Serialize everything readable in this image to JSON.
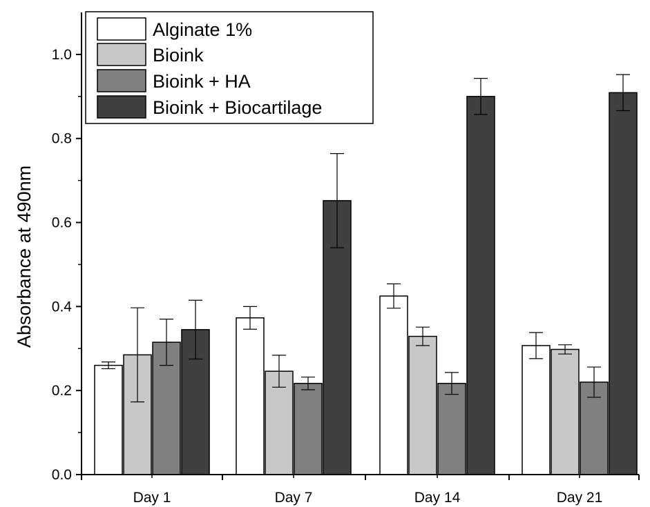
{
  "chart_data": {
    "type": "bar",
    "title": "",
    "xlabel": "",
    "ylabel": "Absorbance at 490nm",
    "ylim": [
      0.0,
      1.1
    ],
    "yticks": [
      "0.0",
      "0.2",
      "0.4",
      "0.6",
      "0.8",
      "1.0"
    ],
    "ytick_values": [
      0.0,
      0.2,
      0.4,
      0.6,
      0.8,
      1.0
    ],
    "categories": [
      "Day 1",
      "Day 7",
      "Day 14",
      "Day 21"
    ],
    "series": [
      {
        "name": "Alginate 1%",
        "color": "#ffffff",
        "values": [
          0.26,
          0.373,
          0.425,
          0.307
        ],
        "errors": [
          0.008,
          0.027,
          0.029,
          0.031
        ]
      },
      {
        "name": "Bioink",
        "color": "#c8c8c8",
        "values": [
          0.285,
          0.246,
          0.329,
          0.298
        ],
        "errors": [
          0.112,
          0.038,
          0.022,
          0.011
        ]
      },
      {
        "name": "Bioink + HA",
        "color": "#808080",
        "values": [
          0.315,
          0.217,
          0.217,
          0.22
        ],
        "errors": [
          0.055,
          0.015,
          0.026,
          0.036
        ]
      },
      {
        "name": "Bioink + Biocartilage",
        "color": "#404040",
        "values": [
          0.345,
          0.652,
          0.9,
          0.909
        ],
        "errors": [
          0.07,
          0.112,
          0.043,
          0.043
        ]
      }
    ],
    "legend": "top-left",
    "grid": false
  }
}
